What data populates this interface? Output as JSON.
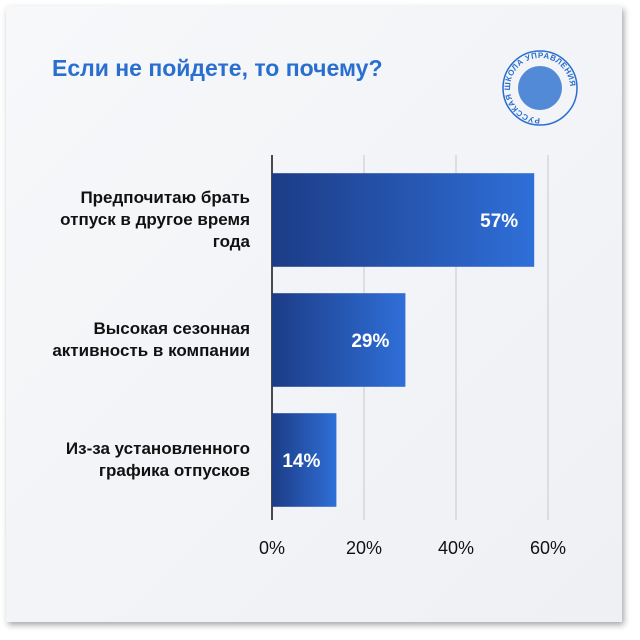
{
  "logo": "РУССКАЯ ШКОЛА УПРАВЛЕНИЯ",
  "chart_data": {
    "type": "barh",
    "title": "Если не пойдете, то почему?",
    "categories": [
      "Предпочитаю брать отпуск в другое время года",
      "Высокая сезонная активность в компании",
      "Из-за установленного графика отпусков"
    ],
    "values": [
      57,
      29,
      14
    ],
    "value_labels": [
      "57%",
      "29%",
      "14%"
    ],
    "color": "#2a5fc0",
    "xlim": [
      0,
      60
    ],
    "xticks": [
      {
        "value": 0,
        "label": "0%"
      },
      {
        "value": 20,
        "label": "20%"
      },
      {
        "value": 40,
        "label": "40%"
      },
      {
        "value": 60,
        "label": "60%"
      }
    ],
    "grid": true
  }
}
